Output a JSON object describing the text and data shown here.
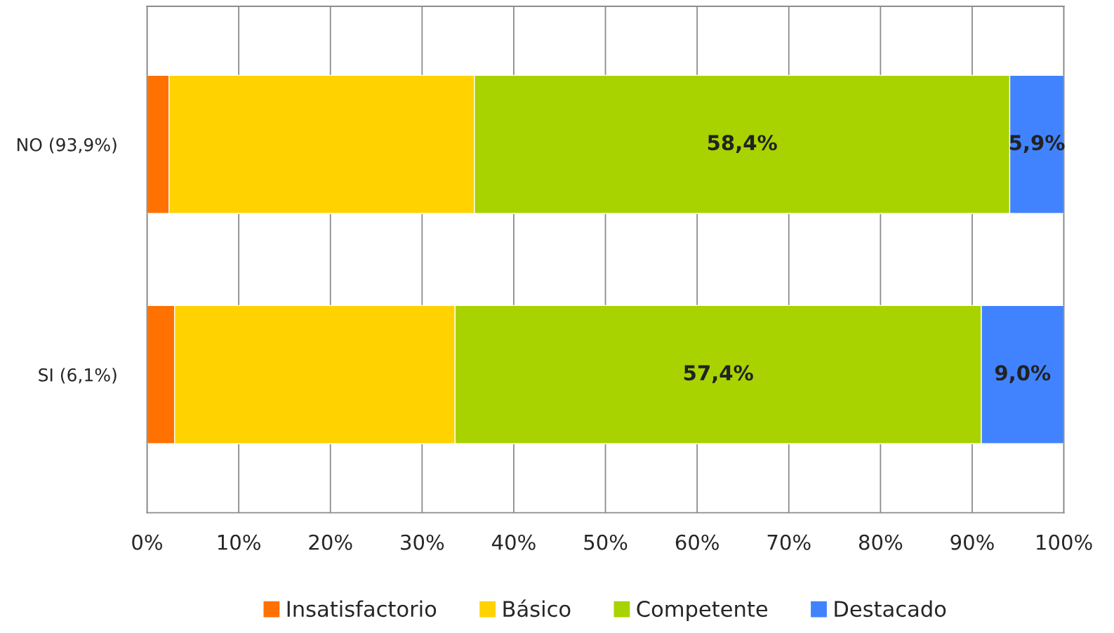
{
  "chart_data": {
    "type": "bar",
    "orientation": "horizontal",
    "stacked": true,
    "categories": [
      "NO (93,9%)",
      "SI (6,1%)"
    ],
    "series": [
      {
        "name": "Insatisfactorio",
        "color": "#ff7100",
        "values": [
          2.4,
          3.0
        ]
      },
      {
        "name": "Básico",
        "color": "#ffd200",
        "values": [
          33.3,
          30.6
        ]
      },
      {
        "name": "Competente",
        "color": "#a8d300",
        "values": [
          58.4,
          57.4
        ],
        "value_labels": [
          "58,4%",
          "57,4%"
        ]
      },
      {
        "name": "Destacado",
        "color": "#4183ff",
        "values": [
          5.9,
          9.0
        ],
        "value_labels": [
          "5,9%",
          "9,0%"
        ]
      }
    ],
    "xlim": [
      0,
      100
    ],
    "xticks": [
      {
        "value": 0,
        "label": "0%"
      },
      {
        "value": 10,
        "label": "10%"
      },
      {
        "value": 20,
        "label": "20%"
      },
      {
        "value": 30,
        "label": "30%"
      },
      {
        "value": 40,
        "label": "40%"
      },
      {
        "value": 50,
        "label": "50%"
      },
      {
        "value": 60,
        "label": "60%"
      },
      {
        "value": 70,
        "label": "70%"
      },
      {
        "value": 80,
        "label": "80%"
      },
      {
        "value": 90,
        "label": "90%"
      },
      {
        "value": 100,
        "label": "100%"
      }
    ],
    "grid": "x",
    "legend": "bottom"
  }
}
